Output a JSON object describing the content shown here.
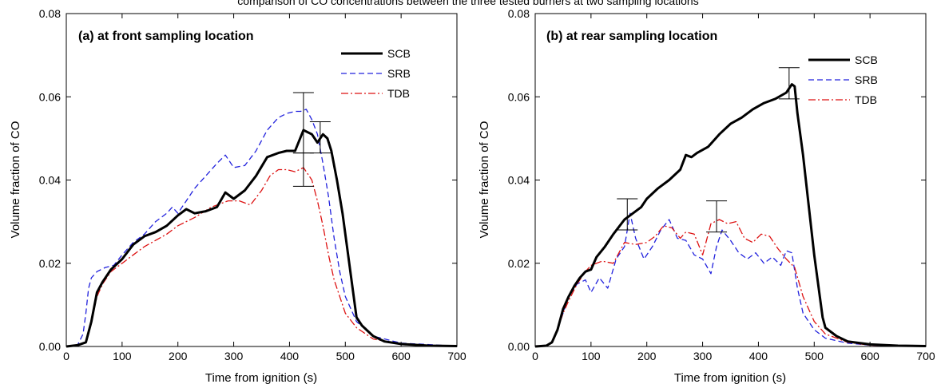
{
  "figure_caption": "comparison of CO concentrations between the three tested burners at two sampling locations",
  "chart_data": [
    {
      "type": "line",
      "title": "(a) at front sampling location",
      "xlabel": "Time from ignition (s)",
      "ylabel": "Volume fraction of CO",
      "xlim": [
        0,
        700
      ],
      "ylim": [
        0,
        0.08
      ],
      "xticks": [
        0,
        100,
        200,
        300,
        400,
        500,
        600,
        700
      ],
      "yticks": [
        0.0,
        0.02,
        0.04,
        0.06,
        0.08
      ],
      "ytick_labels": [
        "0.00",
        "0.02",
        "0.04",
        "0.06",
        "0.08"
      ],
      "legend_position": "top-right",
      "grid": false,
      "series": [
        {
          "name": "SCB",
          "color": "#000000",
          "style": "solid",
          "x": [
            0,
            20,
            35,
            45,
            55,
            65,
            80,
            100,
            120,
            140,
            160,
            180,
            200,
            215,
            230,
            250,
            270,
            285,
            300,
            320,
            340,
            360,
            380,
            395,
            410,
            425,
            440,
            450,
            460,
            468,
            475,
            485,
            495,
            505,
            515,
            520,
            530,
            550,
            570,
            600,
            650,
            700
          ],
          "y": [
            0.0,
            0.0003,
            0.001,
            0.006,
            0.013,
            0.0155,
            0.0185,
            0.021,
            0.0245,
            0.0265,
            0.0275,
            0.029,
            0.0315,
            0.033,
            0.032,
            0.0325,
            0.0335,
            0.037,
            0.0355,
            0.0375,
            0.041,
            0.0455,
            0.0465,
            0.047,
            0.047,
            0.052,
            0.051,
            0.049,
            0.051,
            0.05,
            0.047,
            0.04,
            0.032,
            0.022,
            0.012,
            0.007,
            0.005,
            0.0025,
            0.0012,
            0.0006,
            0.0002,
            0.0001
          ]
        },
        {
          "name": "SRB",
          "color": "#2222dd",
          "style": "dashed",
          "x": [
            0,
            20,
            30,
            35,
            40,
            45,
            55,
            70,
            85,
            100,
            120,
            140,
            160,
            180,
            190,
            200,
            215,
            230,
            250,
            270,
            285,
            300,
            320,
            340,
            360,
            380,
            395,
            410,
            420,
            430,
            440,
            450,
            460,
            470,
            480,
            490,
            500,
            520,
            550,
            600,
            700
          ],
          "y": [
            0.0,
            0.0003,
            0.003,
            0.008,
            0.014,
            0.0165,
            0.018,
            0.019,
            0.0195,
            0.022,
            0.025,
            0.027,
            0.03,
            0.032,
            0.0335,
            0.032,
            0.035,
            0.038,
            0.041,
            0.044,
            0.046,
            0.043,
            0.0435,
            0.047,
            0.052,
            0.055,
            0.056,
            0.0565,
            0.0565,
            0.057,
            0.0545,
            0.051,
            0.044,
            0.036,
            0.026,
            0.018,
            0.012,
            0.006,
            0.0025,
            0.0008,
            0.0001
          ]
        },
        {
          "name": "TDB",
          "color": "#dd1111",
          "style": "dashdot",
          "x": [
            0,
            20,
            35,
            45,
            55,
            65,
            80,
            100,
            120,
            140,
            160,
            180,
            200,
            230,
            260,
            290,
            310,
            330,
            350,
            365,
            380,
            395,
            410,
            425,
            440,
            450,
            460,
            470,
            480,
            490,
            500,
            520,
            550,
            600,
            700
          ],
          "y": [
            0.0,
            0.0003,
            0.001,
            0.006,
            0.012,
            0.015,
            0.018,
            0.02,
            0.022,
            0.024,
            0.0255,
            0.027,
            0.029,
            0.031,
            0.0335,
            0.035,
            0.035,
            0.034,
            0.0375,
            0.041,
            0.0425,
            0.0425,
            0.042,
            0.043,
            0.04,
            0.035,
            0.029,
            0.022,
            0.016,
            0.012,
            0.008,
            0.0045,
            0.0018,
            0.0005,
            0.0001
          ]
        }
      ],
      "error_bars": [
        {
          "x": 425,
          "low": 0.0465,
          "high": 0.061
        },
        {
          "x": 455,
          "low": 0.0465,
          "high": 0.054
        },
        {
          "x": 425,
          "low": 0.0385,
          "high": 0.0465
        }
      ]
    },
    {
      "type": "line",
      "title": "(b) at rear sampling location",
      "xlabel": "Time from ignition (s)",
      "ylabel": "Volume fraction of CO",
      "xlim": [
        0,
        700
      ],
      "ylim": [
        0,
        0.08
      ],
      "xticks": [
        0,
        100,
        200,
        300,
        400,
        500,
        600,
        700
      ],
      "yticks": [
        0.0,
        0.02,
        0.04,
        0.06,
        0.08
      ],
      "ytick_labels": [
        "0.00",
        "0.02",
        "0.04",
        "0.06",
        "0.08"
      ],
      "legend_position": "top-right",
      "grid": false,
      "series": [
        {
          "name": "SCB",
          "color": "#000000",
          "style": "solid",
          "x": [
            0,
            20,
            30,
            40,
            50,
            60,
            70,
            80,
            90,
            100,
            110,
            125,
            140,
            160,
            175,
            190,
            200,
            220,
            240,
            260,
            270,
            280,
            290,
            310,
            330,
            350,
            370,
            390,
            410,
            430,
            450,
            460,
            465,
            470,
            480,
            490,
            500,
            510,
            515,
            520,
            540,
            560,
            600,
            650,
            700
          ],
          "y": [
            0.0,
            0.0002,
            0.001,
            0.004,
            0.009,
            0.012,
            0.0145,
            0.0165,
            0.018,
            0.0185,
            0.0215,
            0.024,
            0.027,
            0.0305,
            0.032,
            0.0335,
            0.0355,
            0.038,
            0.04,
            0.0425,
            0.046,
            0.0455,
            0.0465,
            0.048,
            0.051,
            0.0535,
            0.055,
            0.057,
            0.0585,
            0.0595,
            0.061,
            0.063,
            0.0625,
            0.056,
            0.046,
            0.034,
            0.022,
            0.012,
            0.007,
            0.0045,
            0.0025,
            0.0012,
            0.0005,
            0.0002,
            0.0001
          ]
        },
        {
          "name": "SRB",
          "color": "#2222dd",
          "style": "dashed",
          "x": [
            0,
            20,
            30,
            40,
            50,
            60,
            75,
            90,
            100,
            115,
            130,
            145,
            160,
            170,
            180,
            195,
            210,
            225,
            240,
            255,
            270,
            285,
            300,
            315,
            325,
            335,
            350,
            365,
            380,
            395,
            410,
            425,
            440,
            450,
            460,
            470,
            480,
            500,
            520,
            560,
            600,
            700
          ],
          "y": [
            0.0,
            0.0002,
            0.001,
            0.004,
            0.008,
            0.012,
            0.015,
            0.016,
            0.013,
            0.0165,
            0.014,
            0.021,
            0.024,
            0.032,
            0.026,
            0.021,
            0.024,
            0.028,
            0.0305,
            0.026,
            0.0255,
            0.022,
            0.021,
            0.0175,
            0.024,
            0.028,
            0.0255,
            0.0225,
            0.021,
            0.0225,
            0.02,
            0.0215,
            0.0195,
            0.023,
            0.0225,
            0.014,
            0.008,
            0.004,
            0.002,
            0.0008,
            0.0003,
            0.0001
          ]
        },
        {
          "name": "TDB",
          "color": "#dd1111",
          "style": "dashdot",
          "x": [
            0,
            20,
            30,
            40,
            50,
            60,
            75,
            90,
            100,
            120,
            140,
            160,
            180,
            200,
            215,
            230,
            245,
            260,
            270,
            285,
            300,
            315,
            330,
            345,
            360,
            375,
            390,
            405,
            420,
            435,
            450,
            465,
            480,
            500,
            520,
            560,
            600,
            700
          ],
          "y": [
            0.0,
            0.0002,
            0.001,
            0.004,
            0.008,
            0.011,
            0.015,
            0.018,
            0.0195,
            0.0205,
            0.02,
            0.025,
            0.0245,
            0.025,
            0.0265,
            0.029,
            0.0285,
            0.026,
            0.0275,
            0.027,
            0.022,
            0.0295,
            0.0305,
            0.0295,
            0.03,
            0.026,
            0.025,
            0.027,
            0.0265,
            0.0235,
            0.021,
            0.019,
            0.012,
            0.006,
            0.003,
            0.001,
            0.0003,
            0.0001
          ]
        }
      ],
      "error_bars": [
        {
          "x": 455,
          "low": 0.0595,
          "high": 0.067
        },
        {
          "x": 165,
          "low": 0.028,
          "high": 0.0355
        },
        {
          "x": 325,
          "low": 0.0275,
          "high": 0.035
        }
      ]
    }
  ]
}
